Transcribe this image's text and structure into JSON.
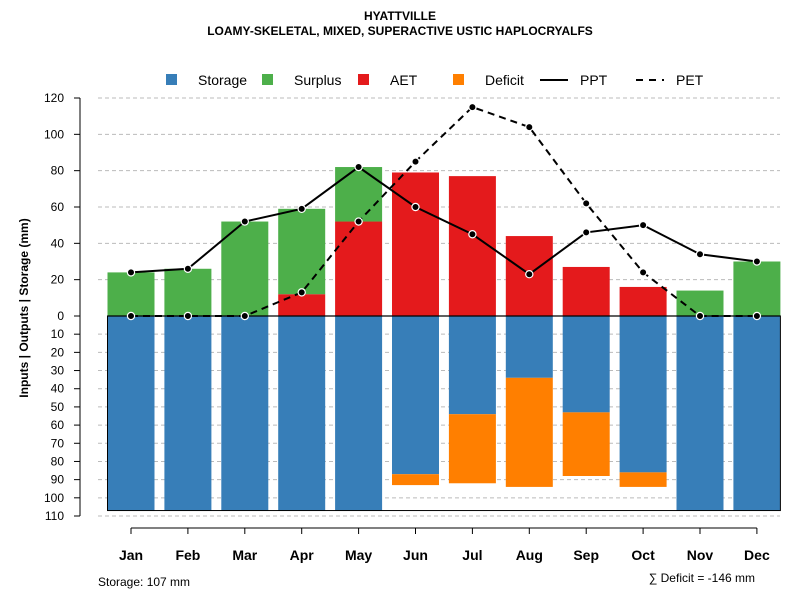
{
  "chart_data": {
    "type": "bar",
    "title": "HYATTVILLE",
    "subtitle": "LOAMY-SKELETAL, MIXED, SUPERACTIVE USTIC HAPLOCRYALFS",
    "ylabel": "Inputs | Outputs | Storage    (mm)",
    "xlabel": "",
    "categories": [
      "Jan",
      "Feb",
      "Mar",
      "Apr",
      "May",
      "Jun",
      "Jul",
      "Aug",
      "Sep",
      "Oct",
      "Nov",
      "Dec"
    ],
    "ylim_top": [
      0,
      120
    ],
    "ylim_bottom": [
      0,
      110
    ],
    "yticks_top": [
      "0",
      "20",
      "40",
      "60",
      "80",
      "100",
      "120"
    ],
    "yticks_bottom": [
      "0",
      "10",
      "20",
      "30",
      "40",
      "50",
      "60",
      "70",
      "80",
      "90",
      "100",
      "110"
    ],
    "legend": [
      "Storage",
      "Surplus",
      "AET",
      "Deficit",
      "PPT",
      "PET"
    ],
    "colors": {
      "storage": "#377eb8",
      "surplus": "#4daf4a",
      "aet": "#e41a1c",
      "deficit": "#ff7f00",
      "line": "#000000",
      "grid": "#bbbbbb"
    },
    "series": [
      {
        "name": "AET",
        "values": [
          0,
          0,
          0,
          12,
          52,
          79,
          77,
          44,
          27,
          16,
          0,
          0
        ]
      },
      {
        "name": "Surplus",
        "values": [
          24,
          26,
          52,
          47,
          30,
          0,
          0,
          0,
          0,
          0,
          14,
          30
        ]
      },
      {
        "name": "Storage",
        "values": [
          107,
          107,
          107,
          107,
          107,
          87,
          54,
          34,
          53,
          86,
          107,
          107
        ]
      },
      {
        "name": "Deficit",
        "values": [
          0,
          0,
          0,
          0,
          0,
          6,
          38,
          60,
          35,
          8,
          0,
          0
        ]
      },
      {
        "name": "PPT",
        "values": [
          24,
          26,
          52,
          59,
          82,
          60,
          45,
          23,
          46,
          50,
          34,
          30
        ]
      },
      {
        "name": "PET",
        "values": [
          0,
          0,
          0,
          13,
          52,
          85,
          115,
          104,
          62,
          24,
          0,
          0
        ]
      }
    ],
    "storage_capacity": 107,
    "footnote_storage": "Storage: 107 mm",
    "footnote_deficit": "∑ Deficit = -146 mm"
  }
}
